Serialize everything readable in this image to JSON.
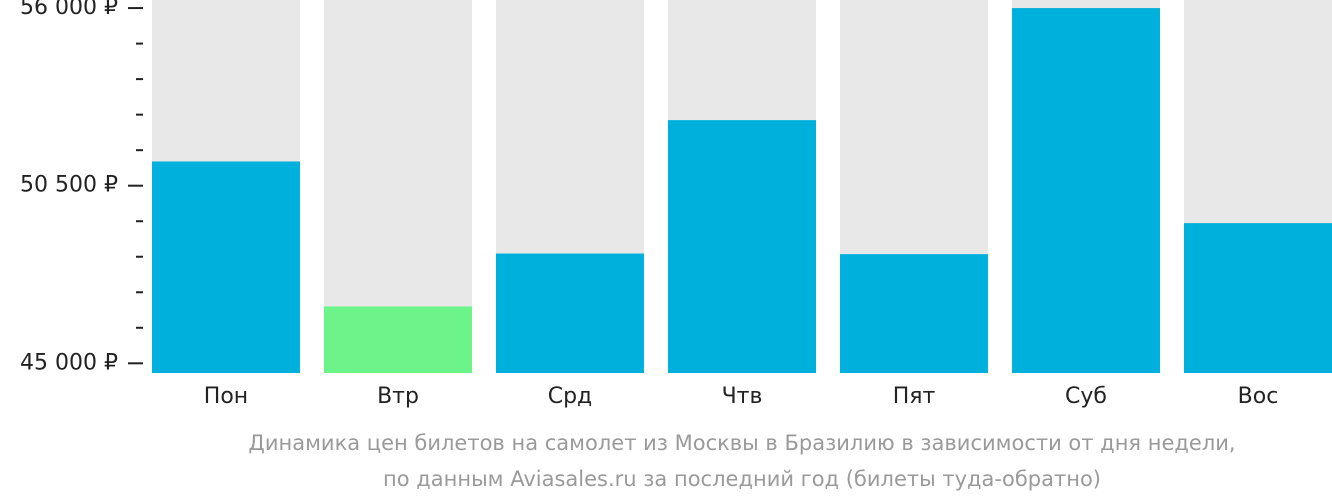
{
  "chart_data": {
    "type": "bar",
    "categories": [
      "Пон",
      "Втр",
      "Срд",
      "Чтв",
      "Пят",
      "Суб",
      "Вос"
    ],
    "values": [
      51250,
      46760,
      48400,
      52530,
      48380,
      56000,
      49340
    ],
    "colors": [
      "#00b0dc",
      "#6cf38a",
      "#00b0dc",
      "#00b0dc",
      "#00b0dc",
      "#00b0dc",
      "#00b0dc"
    ],
    "background_color": "#e8e8e8",
    "ylim": [
      44700,
      56250
    ],
    "yticks": [
      {
        "value": 45000,
        "label": "45 000 ₽"
      },
      {
        "value": 50500,
        "label": "50 500 ₽"
      },
      {
        "value": 56000,
        "label": "56 000 ₽"
      }
    ],
    "minor_yticks": [
      46100,
      47200,
      48300,
      49400,
      51600,
      52700,
      53800,
      54900
    ],
    "caption": [
      "Динамика цен билетов на самолет из Москвы в Бразилию в зависимости от дня недели,",
      "по данным Aviasales.ru за последний год (билеты туда-обратно)"
    ]
  }
}
